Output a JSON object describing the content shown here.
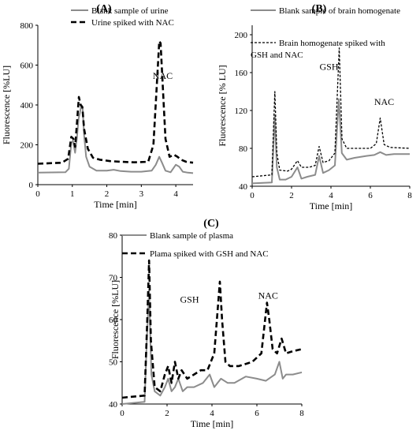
{
  "chart_data": [
    {
      "type": "line",
      "panel": "(A)",
      "xlabel": "Time [min]",
      "ylabel": "Fluorescence [%LU]",
      "xlim": [
        0,
        4.5
      ],
      "ylim": [
        0,
        800
      ],
      "xticks": [
        "0",
        "1",
        "2",
        "3",
        "4"
      ],
      "yticks": [
        "0",
        "200",
        "400",
        "600",
        "800"
      ],
      "legend_position": "top-left",
      "annotations": [
        {
          "text": "NAC",
          "x": 3.62,
          "y": 530
        }
      ],
      "series": [
        {
          "name": "Blank sample of urine",
          "style": "solid",
          "color": "#8c8c8c",
          "x": [
            0,
            0.8,
            0.9,
            0.97,
            1.02,
            1.08,
            1.13,
            1.18,
            1.22,
            1.26,
            1.3,
            1.34,
            1.4,
            1.5,
            1.7,
            2.0,
            2.2,
            2.4,
            2.7,
            3.0,
            3.3,
            3.42,
            3.52,
            3.6,
            3.7,
            3.85,
            4.0,
            4.1,
            4.2,
            4.35,
            4.5
          ],
          "y": [
            60,
            62,
            80,
            210,
            220,
            160,
            230,
            330,
            360,
            400,
            380,
            250,
            140,
            90,
            70,
            70,
            75,
            68,
            65,
            65,
            70,
            100,
            140,
            110,
            70,
            62,
            100,
            90,
            65,
            60,
            58
          ]
        },
        {
          "name": "Urine spiked with NAC",
          "style": "dashed",
          "color": "#000000",
          "x": [
            0,
            0.7,
            0.88,
            0.97,
            1.03,
            1.08,
            1.13,
            1.19,
            1.24,
            1.29,
            1.34,
            1.45,
            1.6,
            1.8,
            2.1,
            2.4,
            2.8,
            3.2,
            3.35,
            3.45,
            3.52,
            3.56,
            3.62,
            3.7,
            3.82,
            3.95,
            4.05,
            4.15,
            4.3,
            4.5
          ],
          "y": [
            105,
            110,
            130,
            240,
            230,
            190,
            300,
            440,
            400,
            390,
            280,
            180,
            135,
            125,
            118,
            115,
            112,
            115,
            200,
            500,
            720,
            710,
            500,
            230,
            140,
            150,
            140,
            125,
            115,
            110
          ]
        }
      ]
    },
    {
      "type": "line",
      "panel": "(B)",
      "xlabel": "Time [min]",
      "ylabel": "Fluorescence [% LU]",
      "xlim": [
        0,
        8
      ],
      "ylim": [
        40,
        210
      ],
      "xticks": [
        "0",
        "2",
        "4",
        "6",
        "8"
      ],
      "yticks": [
        "40",
        "80",
        "120",
        "160",
        "200"
      ],
      "legend_position": "top-right",
      "annotations": [
        {
          "text": "GSH",
          "x": 3.9,
          "y": 163
        },
        {
          "text": "NAC",
          "x": 6.7,
          "y": 126
        }
      ],
      "series": [
        {
          "name": "Blank sample of brain homogenate",
          "style": "solid",
          "color": "#8c8c8c",
          "x": [
            0,
            1.0,
            1.15,
            1.25,
            1.4,
            1.7,
            2.0,
            2.3,
            2.5,
            2.8,
            3.2,
            3.4,
            3.6,
            3.9,
            4.2,
            4.4,
            4.55,
            4.8,
            5.2,
            5.8,
            6.2,
            6.5,
            6.8,
            7.2,
            8.0
          ],
          "y": [
            43,
            44,
            115,
            60,
            47,
            47,
            50,
            60,
            48,
            50,
            52,
            72,
            54,
            57,
            62,
            132,
            75,
            68,
            70,
            72,
            73,
            76,
            73,
            74,
            74
          ]
        },
        {
          "name": "Brain homogenate spiked with GSH and NAC",
          "style": "dotted",
          "color": "#000000",
          "x": [
            0,
            1.0,
            1.15,
            1.25,
            1.4,
            1.8,
            2.0,
            2.3,
            2.5,
            2.9,
            3.2,
            3.4,
            3.6,
            3.9,
            4.2,
            4.42,
            4.56,
            4.8,
            5.3,
            6.0,
            6.3,
            6.5,
            6.7,
            7.0,
            8.0
          ],
          "y": [
            50,
            52,
            140,
            75,
            57,
            56,
            58,
            67,
            60,
            60,
            62,
            82,
            65,
            67,
            75,
            186,
            90,
            80,
            80,
            80,
            85,
            112,
            84,
            81,
            80
          ]
        }
      ]
    },
    {
      "type": "line",
      "panel": "(C)",
      "xlabel": "Time [min]",
      "ylabel": "Fluorescence [%LU]",
      "xlim": [
        0,
        8
      ],
      "ylim": [
        40,
        80
      ],
      "xticks": [
        "0",
        "2",
        "4",
        "6",
        "8"
      ],
      "yticks": [
        "40",
        "50",
        "60",
        "70",
        "80"
      ],
      "legend_position": "top-right",
      "annotations": [
        {
          "text": "GSH",
          "x": 3.0,
          "y": 64
        },
        {
          "text": "NAC",
          "x": 6.5,
          "y": 65
        }
      ],
      "series": [
        {
          "name": "Blank sample of plasma",
          "style": "solid",
          "color": "#8c8c8c",
          "x": [
            0,
            1.0,
            1.1,
            1.2,
            1.3,
            1.45,
            1.7,
            1.9,
            2.05,
            2.2,
            2.35,
            2.5,
            2.7,
            2.9,
            3.2,
            3.6,
            3.9,
            4.1,
            4.4,
            4.7,
            5.0,
            5.5,
            6.0,
            6.4,
            6.8,
            7.0,
            7.15,
            7.3,
            7.6,
            8.0
          ],
          "y": [
            40,
            40.5,
            55,
            67,
            47,
            43,
            42,
            44,
            46,
            43,
            44,
            46,
            43,
            44,
            44,
            45,
            47,
            44,
            46,
            45,
            45,
            46.5,
            46,
            45.5,
            47,
            50,
            46,
            47,
            47,
            47.5
          ]
        },
        {
          "name": "Plama spiked with GSH and NAC",
          "style": "dashed",
          "color": "#000000",
          "x": [
            0,
            1.0,
            1.12,
            1.2,
            1.28,
            1.45,
            1.7,
            1.9,
            2.05,
            2.2,
            2.35,
            2.5,
            2.65,
            2.9,
            3.2,
            3.5,
            3.8,
            4.1,
            4.25,
            4.35,
            4.45,
            4.6,
            4.8,
            5.2,
            5.8,
            6.2,
            6.45,
            6.55,
            6.7,
            6.9,
            7.1,
            7.3,
            7.6,
            8.0
          ],
          "y": [
            41.5,
            42,
            60,
            74,
            55,
            44,
            43,
            47,
            49,
            45,
            50,
            46,
            48,
            46,
            47,
            48,
            48,
            52,
            62,
            69,
            60,
            50,
            49,
            49,
            50,
            52,
            64,
            60,
            53,
            52,
            55.5,
            52,
            52.5,
            53
          ]
        }
      ]
    }
  ]
}
